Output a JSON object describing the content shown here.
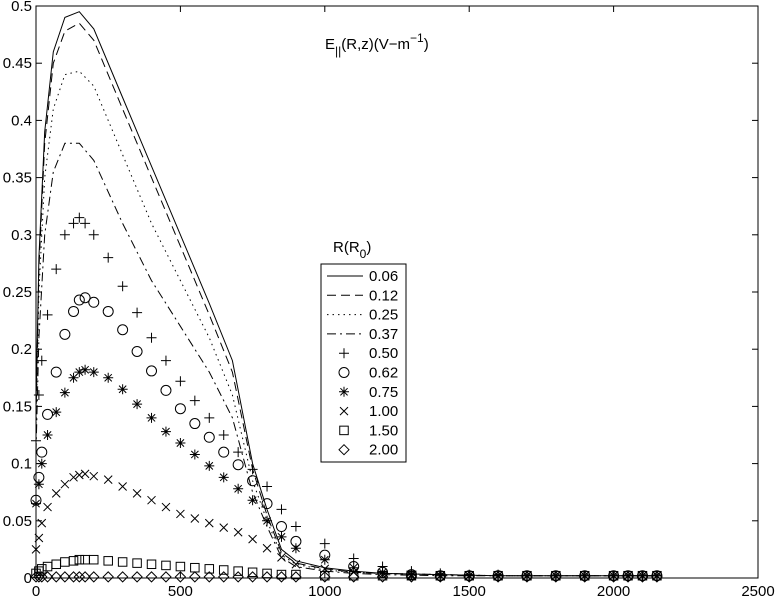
{
  "chart_data": {
    "type": "line",
    "title": {
      "main": "E",
      "sub": "||",
      "args": "(R,z)(V−m",
      "exp": "−1",
      "close": ")"
    },
    "xlabel": "",
    "ylabel": "",
    "xlim": [
      0,
      2500
    ],
    "ylim": [
      0,
      0.5
    ],
    "xticks": [
      0,
      500,
      1000,
      1500,
      2000,
      2500
    ],
    "yticks": [
      0,
      0.05,
      0.1,
      0.15,
      0.2,
      0.25,
      0.3,
      0.35,
      0.4,
      0.45,
      0.5
    ],
    "xtick_labels": [
      "0",
      "500",
      "1000",
      "1500",
      "2000",
      "2500"
    ],
    "ytick_labels": [
      "0",
      "0.05",
      "0.1",
      "0.15",
      "0.2",
      "0.25",
      "0.3",
      "0.35",
      "0.4",
      "0.45",
      "0.5"
    ],
    "grid": false,
    "legend": {
      "title_main": "R(R",
      "title_sub": "0",
      "title_close": ")",
      "placement": "center"
    },
    "x_line": [
      0,
      10,
      30,
      60,
      100,
      150,
      200,
      300,
      400,
      500,
      600,
      680,
      750,
      800,
      850,
      900,
      1000,
      1100,
      1200,
      1400,
      1600,
      1800,
      2000,
      2150
    ],
    "x_markers": [
      0,
      10,
      20,
      40,
      70,
      100,
      130,
      150,
      170,
      200,
      250,
      300,
      350,
      400,
      450,
      500,
      550,
      600,
      650,
      700,
      750,
      800,
      850,
      900,
      1000,
      1100,
      1200,
      1300,
      1400,
      1500,
      1600,
      1700,
      1800,
      1900,
      2000,
      2050,
      2100,
      2150
    ],
    "series": [
      {
        "name": "0.06",
        "style": "solid",
        "values": [
          0.15,
          0.28,
          0.39,
          0.46,
          0.49,
          0.495,
          0.48,
          0.42,
          0.36,
          0.3,
          0.24,
          0.19,
          0.1,
          0.06,
          0.025,
          0.015,
          0.009,
          0.006,
          0.004,
          0.003,
          0.002,
          0.002,
          0.002,
          0.002
        ]
      },
      {
        "name": "0.12",
        "style": "dashed",
        "values": [
          0.14,
          0.27,
          0.38,
          0.45,
          0.478,
          0.485,
          0.47,
          0.41,
          0.35,
          0.29,
          0.23,
          0.18,
          0.095,
          0.055,
          0.022,
          0.013,
          0.008,
          0.005,
          0.004,
          0.003,
          0.002,
          0.002,
          0.002,
          0.002
        ]
      },
      {
        "name": "0.25",
        "style": "dotted",
        "values": [
          0.13,
          0.25,
          0.35,
          0.41,
          0.44,
          0.443,
          0.43,
          0.37,
          0.31,
          0.26,
          0.21,
          0.16,
          0.085,
          0.05,
          0.02,
          0.012,
          0.007,
          0.005,
          0.004,
          0.003,
          0.002,
          0.002,
          0.002,
          0.002
        ]
      },
      {
        "name": "0.37",
        "style": "dashdot",
        "values": [
          0.11,
          0.21,
          0.3,
          0.355,
          0.38,
          0.38,
          0.365,
          0.31,
          0.26,
          0.22,
          0.18,
          0.14,
          0.075,
          0.045,
          0.018,
          0.01,
          0.006,
          0.004,
          0.003,
          0.002,
          0.002,
          0.002,
          0.002,
          0.002
        ]
      },
      {
        "name": "0.50",
        "style": "marker",
        "marker": "plus",
        "values": [
          0.12,
          0.16,
          0.19,
          0.23,
          0.27,
          0.3,
          0.31,
          0.315,
          0.31,
          0.3,
          0.28,
          0.255,
          0.232,
          0.21,
          0.19,
          0.172,
          0.155,
          0.14,
          0.125,
          0.11,
          0.095,
          0.08,
          0.06,
          0.045,
          0.03,
          0.017,
          0.01,
          0.006,
          0.004,
          0.003,
          0.003,
          0.002,
          0.002,
          0.002,
          0.002,
          0.002,
          0.002,
          0.002
        ]
      },
      {
        "name": "0.62",
        "style": "marker",
        "marker": "circle",
        "values": [
          0.068,
          0.088,
          0.11,
          0.143,
          0.18,
          0.213,
          0.233,
          0.243,
          0.245,
          0.241,
          0.233,
          0.217,
          0.198,
          0.181,
          0.164,
          0.148,
          0.135,
          0.123,
          0.11,
          0.099,
          0.085,
          0.065,
          0.045,
          0.032,
          0.02,
          0.01,
          0.005,
          0.003,
          0.002,
          0.002,
          0.002,
          0.002,
          0.002,
          0.002,
          0.002,
          0.002,
          0.002,
          0.002
        ]
      },
      {
        "name": "0.75",
        "style": "marker",
        "marker": "asterisk",
        "values": [
          0.065,
          0.082,
          0.1,
          0.125,
          0.145,
          0.162,
          0.175,
          0.18,
          0.182,
          0.18,
          0.175,
          0.165,
          0.152,
          0.14,
          0.128,
          0.118,
          0.108,
          0.098,
          0.088,
          0.078,
          0.068,
          0.05,
          0.036,
          0.026,
          0.016,
          0.009,
          0.005,
          0.003,
          0.002,
          0.002,
          0.002,
          0.002,
          0.002,
          0.002,
          0.002,
          0.002,
          0.002,
          0.002
        ]
      },
      {
        "name": "1.00",
        "style": "marker",
        "marker": "cross",
        "values": [
          0.025,
          0.035,
          0.048,
          0.062,
          0.074,
          0.082,
          0.088,
          0.09,
          0.091,
          0.089,
          0.086,
          0.08,
          0.074,
          0.068,
          0.062,
          0.056,
          0.052,
          0.048,
          0.044,
          0.04,
          0.034,
          0.026,
          0.018,
          0.012,
          0.008,
          0.005,
          0.003,
          0.002,
          0.002,
          0.002,
          0.002,
          0.002,
          0.002,
          0.002,
          0.002,
          0.002,
          0.002,
          0.002
        ]
      },
      {
        "name": "1.50",
        "style": "marker",
        "marker": "square",
        "values": [
          0.004,
          0.006,
          0.008,
          0.01,
          0.012,
          0.014,
          0.015,
          0.016,
          0.016,
          0.016,
          0.015,
          0.014,
          0.013,
          0.012,
          0.011,
          0.01,
          0.009,
          0.008,
          0.007,
          0.006,
          0.005,
          0.004,
          0.003,
          0.003,
          0.002,
          0.002,
          0.002,
          0.002,
          0.002,
          0.002,
          0.002,
          0.002,
          0.002,
          0.002,
          0.002,
          0.002,
          0.002,
          0.002
        ]
      },
      {
        "name": "2.00",
        "style": "marker",
        "marker": "diamond",
        "values": [
          0.001,
          0.001,
          0.001,
          0.001,
          0.001,
          0.001,
          0.001,
          0.001,
          0.001,
          0.001,
          0.001,
          0.001,
          0.001,
          0.001,
          0.001,
          0.001,
          0.001,
          0.001,
          0.001,
          0.001,
          0.001,
          0.001,
          0.001,
          0.001,
          0.001,
          0.001,
          0.001,
          0.001,
          0.001,
          0.001,
          0.001,
          0.001,
          0.001,
          0.001,
          0.001,
          0.001,
          0.001,
          0.001
        ]
      }
    ]
  }
}
